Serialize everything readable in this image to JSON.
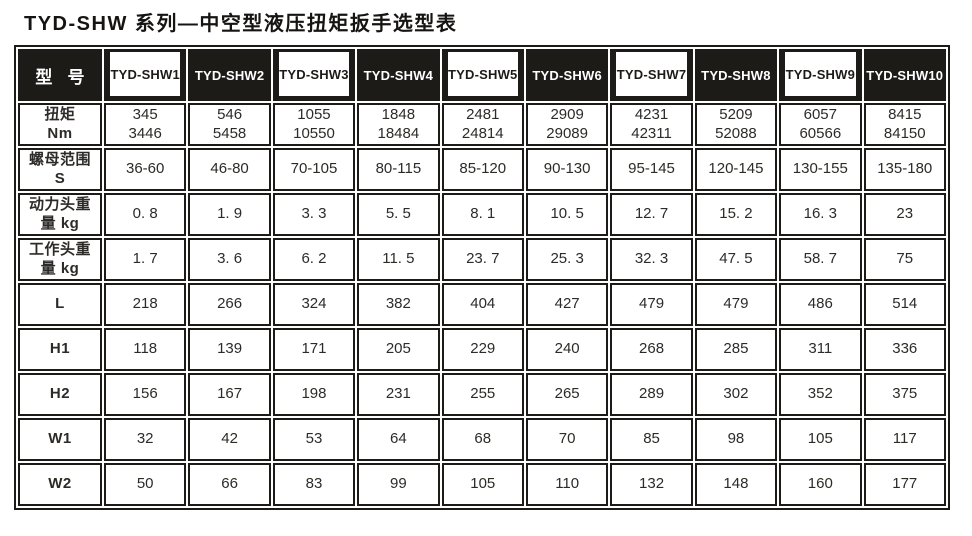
{
  "title": "TYD-SHW 系列—中空型液压扭矩扳手选型表",
  "table": {
    "corner_label": "型 号",
    "columns": [
      "TYD-SHW1",
      "TYD-SHW2",
      "TYD-SHW3",
      "TYD-SHW4",
      "TYD-SHW5",
      "TYD-SHW6",
      "TYD-SHW7",
      "TYD-SHW8",
      "TYD-SHW9",
      "TYD-SHW10"
    ],
    "rows": [
      {
        "label": "扭矩\nNm",
        "values": [
          "345\n3446",
          "546\n5458",
          "1055\n10550",
          "1848\n18484",
          "2481\n24814",
          "2909\n29089",
          "4231\n42311",
          "5209\n52088",
          "6057\n60566",
          "8415\n84150"
        ]
      },
      {
        "label": "螺母范围\nS",
        "values": [
          "36-60",
          "46-80",
          "70-105",
          "80-115",
          "85-120",
          "90-130",
          "95-145",
          "120-145",
          "130-155",
          "135-180"
        ]
      },
      {
        "label": "动力头重\n量 kg",
        "values": [
          "0. 8",
          "1. 9",
          "3. 3",
          "5. 5",
          "8. 1",
          "10. 5",
          "12. 7",
          "15. 2",
          "16. 3",
          "23"
        ]
      },
      {
        "label": "工作头重\n量 kg",
        "values": [
          "1. 7",
          "3. 6",
          "6. 2",
          "11. 5",
          "23. 7",
          "25. 3",
          "32. 3",
          "47. 5",
          "58. 7",
          "75"
        ]
      },
      {
        "label": "L",
        "values": [
          "218",
          "266",
          "324",
          "382",
          "404",
          "427",
          "479",
          "479",
          "486",
          "514"
        ]
      },
      {
        "label": "H1",
        "values": [
          "118",
          "139",
          "171",
          "205",
          "229",
          "240",
          "268",
          "285",
          "311",
          "336"
        ]
      },
      {
        "label": "H2",
        "values": [
          "156",
          "167",
          "198",
          "231",
          "255",
          "265",
          "289",
          "302",
          "352",
          "375"
        ]
      },
      {
        "label": "W1",
        "values": [
          "32",
          "42",
          "53",
          "64",
          "68",
          "70",
          "85",
          "98",
          "105",
          "117"
        ]
      },
      {
        "label": "W2",
        "values": [
          "50",
          "66",
          "83",
          "99",
          "105",
          "110",
          "132",
          "148",
          "160",
          "177"
        ]
      }
    ],
    "colors": {
      "header_bg": "#1d1b18",
      "border": "#1d1b18",
      "cell_text": "#2d2b28",
      "background": "#ffffff"
    }
  }
}
